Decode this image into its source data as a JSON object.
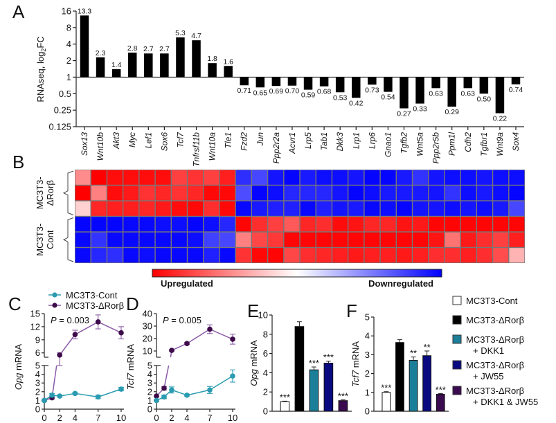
{
  "panels": {
    "A": "A",
    "B": "B",
    "C": "C",
    "D": "D",
    "E": "E",
    "F": "F"
  },
  "chart_data": [
    {
      "id": "A",
      "type": "bar",
      "title": "",
      "ylabel": "RNAseq, log2FC",
      "ylabel_main": "RNAseq, log",
      "ylabel_sub": "2",
      "ylabel_tail": "FC",
      "yscale": "log2",
      "ylim": [
        0.125,
        16
      ],
      "baseline": 1,
      "yticks": [
        "16",
        "8",
        "4",
        "2",
        "1",
        "0.5",
        "0.25",
        "0.125"
      ],
      "ytick_values": [
        16,
        8,
        4,
        2,
        1,
        0.5,
        0.25,
        0.125
      ],
      "categories": [
        "Sox13",
        "Wnt10b",
        "Akt3",
        "Myc",
        "Lef1",
        "Sox6",
        "Tcf7",
        "Tnfrsf11b",
        "Wnt10a",
        "Tle1",
        "Fzd2",
        "Jun",
        "Ppp2r2a",
        "Acvr1",
        "Lrp5",
        "Tab1",
        "Dkk3",
        "Lrp1",
        "Lrp6",
        "Gnao1",
        "Tgfb2",
        "Wnt5a",
        "Ppp2r5b",
        "Ppm1l",
        "Cdh2",
        "Tgfbr1",
        "Wnt9a",
        "Sox4"
      ],
      "values": [
        13.3,
        2.3,
        1.4,
        2.8,
        2.7,
        2.7,
        5.3,
        4.7,
        1.8,
        1.6,
        0.71,
        0.65,
        0.69,
        0.7,
        0.59,
        0.68,
        0.53,
        0.42,
        0.73,
        0.54,
        0.27,
        0.33,
        0.63,
        0.29,
        0.63,
        0.5,
        0.22,
        0.74
      ],
      "labels": [
        "13.3",
        "2.3",
        "1.4",
        "2.8",
        "2.7",
        "2.7",
        "5.3",
        "4.7",
        "1.8",
        "1.6",
        "0.71",
        "0.65",
        "0.69",
        "0.70",
        "0.59",
        "0.68",
        "0.53",
        "0.42",
        "0.73",
        "0.54",
        "0.27",
        "0.33",
        "0.63",
        "0.29",
        "0.63",
        "0.50",
        "0.22",
        "0.74"
      ],
      "bar_color": "#000000"
    },
    {
      "id": "B",
      "type": "heatmap",
      "row_groups": [
        {
          "label_line1": "MC3T3-",
          "label_line2": "ΔRorβ",
          "rows": 3
        },
        {
          "label_line1": "MC3T3-",
          "label_line2": "Cont",
          "rows": 3
        }
      ],
      "columns": 28,
      "values": [
        [
          0.45,
          1.0,
          0.95,
          0.95,
          0.95,
          0.95,
          0.75,
          0.8,
          0.75,
          0.88,
          -0.82,
          -0.72,
          -0.92,
          -0.98,
          -0.9,
          -0.95,
          -0.95,
          -0.92,
          -0.98,
          -0.98,
          -0.9,
          -0.8,
          -0.92,
          -0.95,
          -0.95,
          -0.92,
          -0.95,
          -0.95
        ],
        [
          1.0,
          0.5,
          0.95,
          0.9,
          0.8,
          0.85,
          0.8,
          0.85,
          0.97,
          0.97,
          -0.7,
          -0.98,
          -0.95,
          -0.85,
          -0.85,
          -0.85,
          -0.92,
          -0.98,
          -0.95,
          -0.9,
          -0.9,
          -0.9,
          -0.92,
          -0.8,
          -0.95,
          -0.9,
          -0.95,
          -0.98
        ],
        [
          0.18,
          0.85,
          0.88,
          0.88,
          0.85,
          0.9,
          0.95,
          0.97,
          0.82,
          0.97,
          -0.97,
          -0.9,
          -0.88,
          -0.88,
          -0.97,
          -0.88,
          -0.92,
          -0.9,
          -0.97,
          -0.95,
          -0.98,
          -0.92,
          -0.92,
          -0.95,
          -0.92,
          -0.95,
          -0.9,
          -0.72
        ],
        [
          -0.98,
          -0.98,
          -0.98,
          -0.97,
          -0.97,
          -0.95,
          -0.95,
          -0.98,
          -0.95,
          -0.85,
          0.98,
          0.82,
          0.75,
          0.65,
          0.85,
          0.82,
          0.95,
          0.92,
          0.85,
          0.85,
          0.92,
          0.9,
          0.98,
          0.98,
          0.98,
          0.98,
          0.98,
          0.98
        ],
        [
          -0.97,
          -0.8,
          -0.97,
          -0.97,
          -0.97,
          -0.97,
          -0.97,
          -0.95,
          -0.75,
          -0.72,
          0.5,
          0.72,
          0.78,
          0.98,
          0.98,
          0.98,
          0.98,
          0.98,
          0.98,
          0.98,
          0.98,
          0.98,
          0.92,
          0.55,
          0.9,
          0.82,
          0.75,
          0.88
        ],
        [
          -0.97,
          -0.85,
          -0.82,
          -0.97,
          -0.95,
          -0.97,
          -0.97,
          -0.97,
          -0.88,
          -0.97,
          0.8,
          0.97,
          0.98,
          0.72,
          0.82,
          0.85,
          0.88,
          0.9,
          0.88,
          0.88,
          0.9,
          0.88,
          0.82,
          0.82,
          0.88,
          0.82,
          0.7,
          0.3
        ]
      ],
      "colorbar": {
        "low_label": "Upregulated",
        "high_label": "Downregulated",
        "low_color": "#ff0000",
        "mid_color": "#ffffff",
        "high_color": "#0000ff"
      }
    },
    {
      "id": "C",
      "type": "line",
      "ylabel_italic": "Opg",
      "ylabel_rest": " mRNA",
      "x": [
        0,
        1,
        2,
        4,
        7,
        10
      ],
      "xticks": [
        "0",
        "2",
        "4",
        "7",
        "10"
      ],
      "xtick_values": [
        0,
        2,
        4,
        7,
        10
      ],
      "broken_axis": true,
      "lower_ylim": [
        0,
        5
      ],
      "lower_yticks": [
        "0",
        "1",
        "2",
        "3",
        "4",
        "5"
      ],
      "upper_ylim": [
        5,
        15
      ],
      "upper_yticks": [
        "6",
        "9",
        "12",
        "15"
      ],
      "upper_ytick_values": [
        6,
        9,
        12,
        15
      ],
      "annotation_italic": "P",
      "annotation_rest": " = 0.003",
      "series": [
        {
          "name": "MC3T3-Cont",
          "color": "#2a9bb0",
          "values": [
            1.0,
            1.6,
            1.5,
            1.8,
            1.4,
            2.3
          ],
          "err": [
            0.1,
            0.2,
            0.1,
            0.1,
            0.2,
            0.2
          ]
        },
        {
          "name": "MC3T3-ΔRorβ",
          "color": "#3d0a4a",
          "line_color": "#8a5aa8",
          "values": [
            1.0,
            1.3,
            5.5,
            10.2,
            13.1,
            10.6
          ],
          "err": [
            0.1,
            0.15,
            0.5,
            1.0,
            1.6,
            1.4
          ]
        }
      ]
    },
    {
      "id": "D",
      "type": "line",
      "ylabel_italic": "Tcf7",
      "ylabel_rest": " mRNA",
      "x": [
        0,
        1,
        2,
        4,
        7,
        10
      ],
      "xticks": [
        "0",
        "2",
        "4",
        "7",
        "10"
      ],
      "xtick_values": [
        0,
        2,
        4,
        7,
        10
      ],
      "broken_axis": true,
      "lower_ylim": [
        0,
        5
      ],
      "lower_yticks": [
        "0",
        "1",
        "2",
        "3",
        "4",
        "5"
      ],
      "upper_ylim": [
        5,
        40
      ],
      "upper_yticks": [
        "10",
        "20",
        "30",
        "40"
      ],
      "upper_ytick_values": [
        10,
        20,
        30,
        40
      ],
      "annotation_italic": "P",
      "annotation_rest": " = 0.005",
      "series": [
        {
          "name": "MC3T3-Cont",
          "color": "#2a9bb0",
          "values": [
            1.0,
            1.4,
            2.2,
            1.6,
            2.2,
            3.8
          ],
          "err": [
            0.1,
            0.2,
            0.35,
            0.1,
            0.4,
            0.7
          ]
        },
        {
          "name": "MC3T3-ΔRorβ",
          "color": "#3d0a4a",
          "line_color": "#8a5aa8",
          "values": [
            1.5,
            2.4,
            10.5,
            16,
            27.5,
            19.5
          ],
          "err": [
            0.1,
            0.2,
            0.6,
            0.8,
            3.5,
            4
          ]
        }
      ]
    },
    {
      "id": "E",
      "type": "bar",
      "ylabel_italic": "Opg",
      "ylabel_rest": " mRNA",
      "ylim": [
        0,
        10
      ],
      "yticks": [
        "0",
        "2",
        "4",
        "6",
        "8",
        "10"
      ],
      "ytick_values": [
        0,
        2,
        4,
        6,
        8,
        10
      ],
      "categories": [
        "MC3T3-Cont",
        "MC3T3-ΔRorβ",
        "MC3T3-ΔRorβ + DKK1",
        "MC3T3-ΔRorβ + JW55",
        "MC3T3-ΔRorβ + DKK1 & JW55"
      ],
      "values": [
        1.0,
        8.8,
        4.3,
        5.0,
        1.1
      ],
      "err": [
        0.05,
        0.5,
        0.3,
        0.2,
        0.08
      ],
      "significance": [
        "***",
        "",
        "***",
        "***",
        "***"
      ]
    },
    {
      "id": "F",
      "type": "bar",
      "ylabel_italic": "Tcf7",
      "ylabel_rest": " mRNA",
      "ylim": [
        0,
        5
      ],
      "yticks": [
        "0",
        "1",
        "2",
        "3",
        "4",
        "5"
      ],
      "ytick_values": [
        0,
        1,
        2,
        3,
        4,
        5
      ],
      "categories": [
        "MC3T3-Cont",
        "MC3T3-ΔRorβ",
        "MC3T3-ΔRorβ + DKK1",
        "MC3T3-ΔRorβ + JW55",
        "MC3T3-ΔRorβ + DKK1 & JW55"
      ],
      "values": [
        1.0,
        3.65,
        2.7,
        2.95,
        0.9
      ],
      "err": [
        0.04,
        0.15,
        0.18,
        0.25,
        0.04
      ],
      "significance": [
        "***",
        "",
        "**",
        "**",
        "***"
      ]
    }
  ],
  "line_legend": [
    {
      "label": "MC3T3-Cont",
      "color": "#2a9bb0"
    },
    {
      "label": "MC3T3-ΔRorβ",
      "color": "#3d0a4a"
    }
  ],
  "bar_legend": [
    {
      "line1": "MC3T3-Cont",
      "line2": "",
      "color": "#ffffff"
    },
    {
      "line1": "MC3T3-ΔRorβ",
      "line2": "",
      "color": "#000000"
    },
    {
      "line1": "MC3T3-ΔRorβ",
      "line2": "+ DKK1",
      "color": "#1b7f99"
    },
    {
      "line1": "MC3T3-ΔRorβ",
      "line2": "+ JW55",
      "color": "#0a0a80"
    },
    {
      "line1": "MC3T3-ΔRorβ",
      "line2": "+ DKK1 & JW55",
      "color": "#3a0b4e"
    }
  ]
}
